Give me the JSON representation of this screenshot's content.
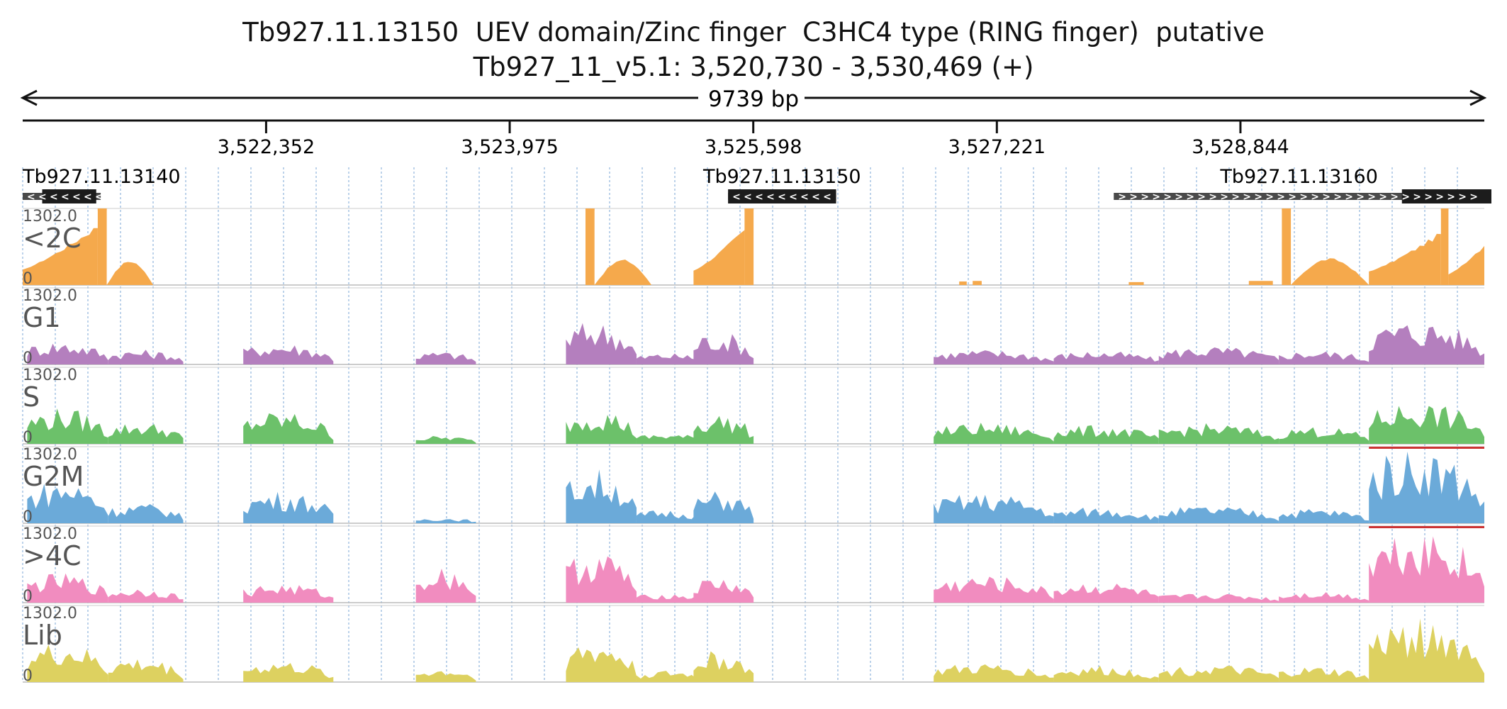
{
  "title": "Tb927.11.13150  UEV domain/Zinc finger  C3HC4 type (RING finger)  putative",
  "subtitle": "Tb927_11_v5.1: 3,520,730 - 3,530,469 (+)",
  "span_label": "9739 bp",
  "colors": {
    "c2C": "#f5a94c",
    "G1": "#b47fbe",
    "S": "#6cc16a",
    "G2M": "#6baad9",
    "c4C": "#f18cbf",
    "Lib": "#ddd160",
    "gene_fill": "#1c1c1c",
    "gene_line": "#4a4a4a",
    "grid": "#8fb4dc",
    "clip": "#cc3333"
  },
  "chart_data": {
    "type": "area",
    "chromosome": "Tb927_11_v5.1",
    "region": [
      3520730,
      3530469
    ],
    "x_ticks": [
      "3,522,352",
      "3,523,975",
      "3,525,598",
      "3,527,221",
      "3,528,844"
    ],
    "x_tick_values": [
      3522352,
      3523975,
      3525598,
      3527221,
      3528844
    ],
    "genes": [
      {
        "name": "Tb927.11.13140",
        "strand": "-",
        "start": 3520730,
        "end": 3521250,
        "cds": [
          3520860,
          3521220
        ]
      },
      {
        "name": "Tb927.11.13150",
        "strand": "-",
        "start": 3525430,
        "end": 3526150,
        "cds": [
          3525430,
          3526150
        ]
      },
      {
        "name": "Tb927.11.13160",
        "strand": "+",
        "start": 3528000,
        "end": 3530469,
        "cds": [
          3529920,
          3530590
        ]
      }
    ],
    "tracks": [
      {
        "name": "<2C",
        "color_key": "c2C",
        "ymax_label": "1302.0",
        "ymin_label": "0",
        "clip_color": "c2C",
        "segments": [
          {
            "s": 3520730,
            "e": 3521230,
            "peak": 1050,
            "shape": "ramp"
          },
          {
            "s": 3521230,
            "e": 3521290,
            "peak": 1302,
            "shape": "flat"
          },
          {
            "s": 3521290,
            "e": 3521600,
            "peak": 420,
            "shape": "hump"
          },
          {
            "s": 3524480,
            "e": 3524540,
            "peak": 1302,
            "shape": "flat"
          },
          {
            "s": 3524540,
            "e": 3524920,
            "peak": 440,
            "shape": "hump"
          },
          {
            "s": 3525200,
            "e": 3525540,
            "peak": 980,
            "shape": "ramp"
          },
          {
            "s": 3525540,
            "e": 3525600,
            "peak": 1302,
            "shape": "flat"
          },
          {
            "s": 3526970,
            "e": 3527020,
            "peak": 60,
            "shape": "flat"
          },
          {
            "s": 3527060,
            "e": 3527120,
            "peak": 70,
            "shape": "flat"
          },
          {
            "s": 3528100,
            "e": 3528200,
            "peak": 50,
            "shape": "flat"
          },
          {
            "s": 3528900,
            "e": 3529060,
            "peak": 70,
            "shape": "flat"
          },
          {
            "s": 3529120,
            "e": 3529180,
            "peak": 1302,
            "shape": "flat"
          },
          {
            "s": 3529180,
            "e": 3529700,
            "peak": 460,
            "shape": "hump"
          },
          {
            "s": 3529700,
            "e": 3530180,
            "peak": 920,
            "shape": "ramp"
          },
          {
            "s": 3530180,
            "e": 3530230,
            "peak": 1302,
            "shape": "flat"
          },
          {
            "s": 3530230,
            "e": 3530469,
            "peak": 720,
            "shape": "ramp"
          }
        ]
      },
      {
        "name": "G1",
        "color_key": "G1",
        "ymax_label": "1302.0",
        "ymin_label": "0",
        "segments": [
          {
            "s": 3520760,
            "e": 3521300,
            "peak": 420,
            "shape": "noisy"
          },
          {
            "s": 3521300,
            "e": 3521800,
            "peak": 260,
            "shape": "noisy"
          },
          {
            "s": 3522200,
            "e": 3522800,
            "peak": 380,
            "shape": "noisy"
          },
          {
            "s": 3523350,
            "e": 3523750,
            "peak": 230,
            "shape": "noisy"
          },
          {
            "s": 3524350,
            "e": 3524820,
            "peak": 760,
            "shape": "noisy"
          },
          {
            "s": 3524820,
            "e": 3525300,
            "peak": 200,
            "shape": "noisy"
          },
          {
            "s": 3525200,
            "e": 3525600,
            "peak": 580,
            "shape": "noisy"
          },
          {
            "s": 3526800,
            "e": 3527600,
            "peak": 260,
            "shape": "noisy"
          },
          {
            "s": 3527600,
            "e": 3528300,
            "peak": 240,
            "shape": "noisy"
          },
          {
            "s": 3528300,
            "e": 3529100,
            "peak": 320,
            "shape": "noisy"
          },
          {
            "s": 3529100,
            "e": 3529700,
            "peak": 250,
            "shape": "noisy"
          },
          {
            "s": 3529700,
            "e": 3530469,
            "peak": 780,
            "shape": "noisy"
          }
        ]
      },
      {
        "name": "S",
        "color_key": "S",
        "ymax_label": "1302.0",
        "ymin_label": "0",
        "segments": [
          {
            "s": 3520760,
            "e": 3521300,
            "peak": 620,
            "shape": "noisy"
          },
          {
            "s": 3521300,
            "e": 3521800,
            "peak": 380,
            "shape": "noisy"
          },
          {
            "s": 3522200,
            "e": 3522800,
            "peak": 560,
            "shape": "noisy"
          },
          {
            "s": 3523350,
            "e": 3523750,
            "peak": 140,
            "shape": "noisy"
          },
          {
            "s": 3524350,
            "e": 3524820,
            "peak": 620,
            "shape": "noisy"
          },
          {
            "s": 3524820,
            "e": 3525300,
            "peak": 180,
            "shape": "noisy"
          },
          {
            "s": 3525200,
            "e": 3525600,
            "peak": 520,
            "shape": "noisy"
          },
          {
            "s": 3526800,
            "e": 3527600,
            "peak": 360,
            "shape": "noisy"
          },
          {
            "s": 3527600,
            "e": 3528300,
            "peak": 320,
            "shape": "noisy"
          },
          {
            "s": 3528300,
            "e": 3529100,
            "peak": 350,
            "shape": "noisy"
          },
          {
            "s": 3529100,
            "e": 3529700,
            "peak": 300,
            "shape": "noisy"
          },
          {
            "s": 3529700,
            "e": 3530469,
            "peak": 720,
            "shape": "noisy"
          }
        ]
      },
      {
        "name": "G2M",
        "color_key": "G2M",
        "ymax_label": "1302.0",
        "ymin_label": "0",
        "clip_color": "clip",
        "segments": [
          {
            "s": 3520760,
            "e": 3521300,
            "peak": 760,
            "shape": "noisy"
          },
          {
            "s": 3521300,
            "e": 3521800,
            "peak": 350,
            "shape": "noisy"
          },
          {
            "s": 3522200,
            "e": 3522800,
            "peak": 560,
            "shape": "noisy"
          },
          {
            "s": 3523350,
            "e": 3523750,
            "peak": 100,
            "shape": "noisy"
          },
          {
            "s": 3524350,
            "e": 3524820,
            "peak": 940,
            "shape": "noisy"
          },
          {
            "s": 3524820,
            "e": 3525300,
            "peak": 240,
            "shape": "noisy"
          },
          {
            "s": 3525200,
            "e": 3525600,
            "peak": 560,
            "shape": "noisy"
          },
          {
            "s": 3526800,
            "e": 3527600,
            "peak": 520,
            "shape": "noisy"
          },
          {
            "s": 3527600,
            "e": 3528300,
            "peak": 280,
            "shape": "noisy"
          },
          {
            "s": 3528300,
            "e": 3529100,
            "peak": 300,
            "shape": "noisy"
          },
          {
            "s": 3529100,
            "e": 3529700,
            "peak": 260,
            "shape": "noisy"
          },
          {
            "s": 3529700,
            "e": 3530469,
            "peak": 1302,
            "shape": "noisy"
          }
        ]
      },
      {
        "name": ">4C",
        "color_key": "c4C",
        "ymax_label": "1302.0",
        "ymin_label": "0",
        "clip_color": "clip",
        "segments": [
          {
            "s": 3520760,
            "e": 3521300,
            "peak": 500,
            "shape": "noisy"
          },
          {
            "s": 3521300,
            "e": 3521800,
            "peak": 260,
            "shape": "noisy"
          },
          {
            "s": 3522200,
            "e": 3522800,
            "peak": 330,
            "shape": "noisy"
          },
          {
            "s": 3523350,
            "e": 3523750,
            "peak": 620,
            "shape": "noisy"
          },
          {
            "s": 3524350,
            "e": 3524820,
            "peak": 900,
            "shape": "noisy"
          },
          {
            "s": 3524820,
            "e": 3525300,
            "peak": 160,
            "shape": "noisy"
          },
          {
            "s": 3525200,
            "e": 3525600,
            "peak": 440,
            "shape": "noisy"
          },
          {
            "s": 3526800,
            "e": 3527600,
            "peak": 460,
            "shape": "noisy"
          },
          {
            "s": 3527600,
            "e": 3528300,
            "peak": 360,
            "shape": "noisy"
          },
          {
            "s": 3528300,
            "e": 3529100,
            "peak": 160,
            "shape": "noisy"
          },
          {
            "s": 3529100,
            "e": 3529700,
            "peak": 200,
            "shape": "noisy"
          },
          {
            "s": 3529700,
            "e": 3530469,
            "peak": 1302,
            "shape": "noisy"
          }
        ]
      },
      {
        "name": "Lib",
        "color_key": "Lib",
        "ymax_label": "1302.0",
        "ymin_label": "0",
        "segments": [
          {
            "s": 3520760,
            "e": 3521300,
            "peak": 680,
            "shape": "noisy"
          },
          {
            "s": 3521300,
            "e": 3521800,
            "peak": 420,
            "shape": "noisy"
          },
          {
            "s": 3522200,
            "e": 3522800,
            "peak": 360,
            "shape": "noisy"
          },
          {
            "s": 3523350,
            "e": 3523750,
            "peak": 240,
            "shape": "noisy"
          },
          {
            "s": 3524350,
            "e": 3524820,
            "peak": 720,
            "shape": "noisy"
          },
          {
            "s": 3524820,
            "e": 3525300,
            "peak": 200,
            "shape": "noisy"
          },
          {
            "s": 3525200,
            "e": 3525600,
            "peak": 540,
            "shape": "noisy"
          },
          {
            "s": 3526800,
            "e": 3527600,
            "peak": 320,
            "shape": "noisy"
          },
          {
            "s": 3527600,
            "e": 3528300,
            "peak": 280,
            "shape": "noisy"
          },
          {
            "s": 3528300,
            "e": 3529100,
            "peak": 300,
            "shape": "noisy"
          },
          {
            "s": 3529100,
            "e": 3529700,
            "peak": 260,
            "shape": "noisy"
          },
          {
            "s": 3529700,
            "e": 3530469,
            "peak": 1100,
            "shape": "noisy"
          }
        ]
      }
    ]
  }
}
